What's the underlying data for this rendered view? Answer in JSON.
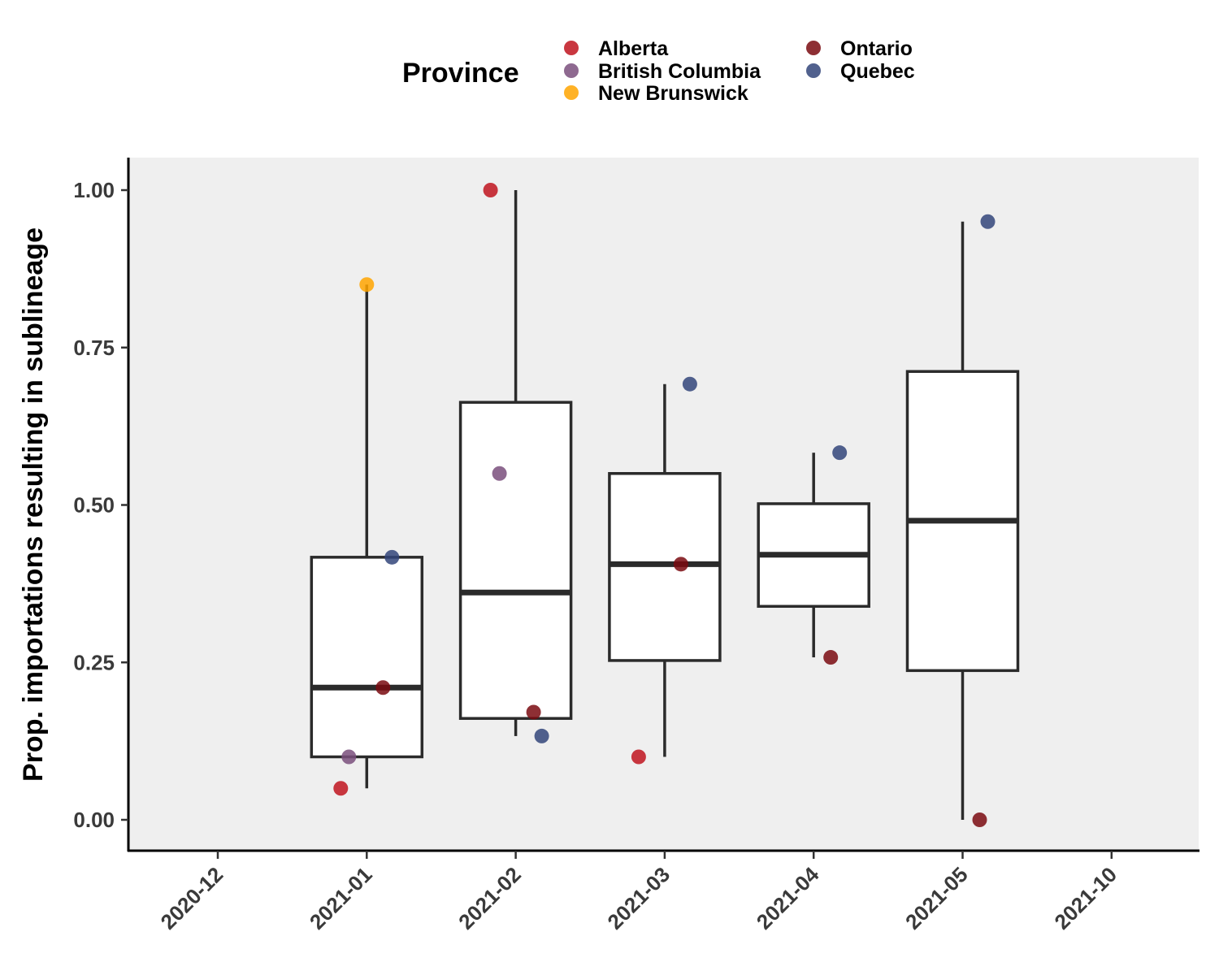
{
  "chart_data": {
    "type": "box",
    "title": "",
    "xlabel": "",
    "ylabel": "Prop. importations resulting in sublineage",
    "ylim": [
      -0.05,
      1.05
    ],
    "yticks": [
      0.0,
      0.25,
      0.5,
      0.75,
      1.0
    ],
    "ytick_labels": [
      "0.00",
      "0.25",
      "0.50",
      "0.75",
      "1.00"
    ],
    "categories": [
      "2020-12",
      "2021-01",
      "2021-02",
      "2021-03",
      "2021-04",
      "2021-05",
      "2021-10"
    ],
    "grid": false,
    "legend": {
      "title": "Province",
      "placement": "top",
      "entries": [
        {
          "name": "Alberta",
          "color": "#c0141f"
        },
        {
          "name": "British Columbia",
          "color": "#7a4f7d"
        },
        {
          "name": "New Brunswick",
          "color": "#ffa500"
        },
        {
          "name": "Ontario",
          "color": "#7a0a10"
        },
        {
          "name": "Quebec",
          "color": "#32457a"
        }
      ]
    },
    "boxes": [
      {
        "category": "2021-01",
        "whisker_low": 0.05,
        "q1": 0.1,
        "median": 0.21,
        "q3": 0.417,
        "whisker_high": 0.85
      },
      {
        "category": "2021-02",
        "whisker_low": 0.133,
        "q1": 0.161,
        "median": 0.361,
        "q3": 0.663,
        "whisker_high": 1.0
      },
      {
        "category": "2021-03",
        "whisker_low": 0.1,
        "q1": 0.253,
        "median": 0.406,
        "q3": 0.55,
        "whisker_high": 0.692
      },
      {
        "category": "2021-04",
        "whisker_low": 0.258,
        "q1": 0.339,
        "median": 0.421,
        "q3": 0.502,
        "whisker_high": 0.583
      },
      {
        "category": "2021-05",
        "whisker_low": 0.0,
        "q1": 0.237,
        "median": 0.475,
        "q3": 0.712,
        "whisker_high": 0.95
      }
    ],
    "points": [
      {
        "category": "2021-01",
        "province": "New Brunswick",
        "value": 0.85
      },
      {
        "category": "2021-01",
        "province": "Quebec",
        "value": 0.417
      },
      {
        "category": "2021-01",
        "province": "Ontario",
        "value": 0.21
      },
      {
        "category": "2021-01",
        "province": "British Columbia",
        "value": 0.1
      },
      {
        "category": "2021-01",
        "province": "Alberta",
        "value": 0.05
      },
      {
        "category": "2021-02",
        "province": "Alberta",
        "value": 1.0
      },
      {
        "category": "2021-02",
        "province": "British Columbia",
        "value": 0.55
      },
      {
        "category": "2021-02",
        "province": "Ontario",
        "value": 0.171
      },
      {
        "category": "2021-02",
        "province": "Quebec",
        "value": 0.133
      },
      {
        "category": "2021-03",
        "province": "Quebec",
        "value": 0.692
      },
      {
        "category": "2021-03",
        "province": "Ontario",
        "value": 0.406
      },
      {
        "category": "2021-03",
        "province": "Alberta",
        "value": 0.1
      },
      {
        "category": "2021-04",
        "province": "Quebec",
        "value": 0.583
      },
      {
        "category": "2021-04",
        "province": "Ontario",
        "value": 0.258
      },
      {
        "category": "2021-05",
        "province": "Quebec",
        "value": 0.95
      },
      {
        "category": "2021-05",
        "province": "Ontario",
        "value": 0.0
      }
    ]
  }
}
